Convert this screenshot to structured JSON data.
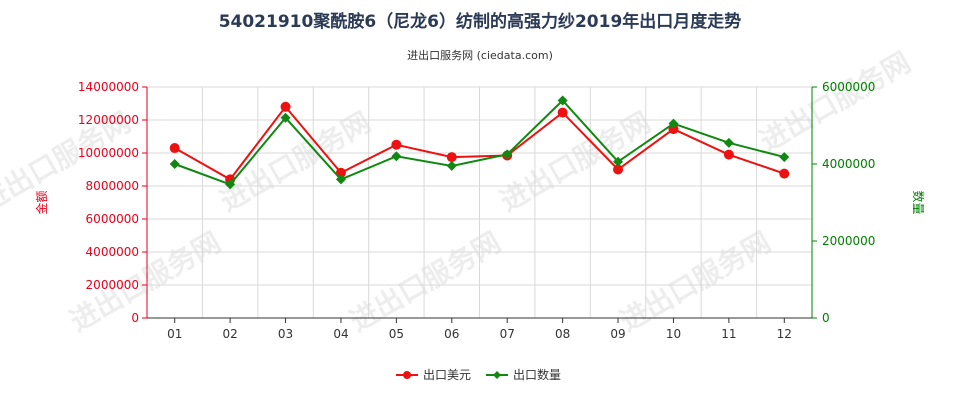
{
  "page": {
    "title": "54021910聚酰胺6（尼龙6）纺制的高强力纱2019年出口月度走势",
    "subtitle": "进出口服务网 (ciedata.com)",
    "watermark": "进出口服务网"
  },
  "chart_data": {
    "type": "line",
    "categories": [
      "01",
      "02",
      "03",
      "04",
      "05",
      "06",
      "07",
      "08",
      "09",
      "10",
      "11",
      "12"
    ],
    "y_left": {
      "label": "金额",
      "ylim": [
        0,
        14000000
      ],
      "ticks": [
        0,
        2000000,
        4000000,
        6000000,
        8000000,
        10000000,
        12000000,
        14000000
      ],
      "tick_labels": [
        "0",
        "2000000",
        "4000000",
        "6000000",
        "8000000",
        "10000000",
        "12000000",
        "14000000"
      ],
      "color": "#e8001c"
    },
    "y_right": {
      "label": "数量",
      "ylim": [
        0,
        6000000
      ],
      "ticks": [
        0,
        2000000,
        4000000,
        6000000
      ],
      "tick_labels": [
        "0",
        "2000000",
        "4000000",
        "6000000"
      ],
      "color": "#008000"
    },
    "series": [
      {
        "name": "出口美元",
        "axis": "left",
        "color": "#ee1111",
        "marker": "circle",
        "values": [
          10300000,
          8400000,
          12800000,
          8800000,
          10500000,
          9750000,
          9850000,
          12450000,
          9000000,
          11450000,
          9900000,
          8750000
        ]
      },
      {
        "name": "出口数量",
        "axis": "right",
        "color": "#118811",
        "marker": "diamond",
        "values": [
          4000000,
          3470000,
          5200000,
          3600000,
          4200000,
          3950000,
          4250000,
          5650000,
          4060000,
          5050000,
          4550000,
          4180000
        ]
      }
    ],
    "grid": true,
    "legend": "bottom-center"
  }
}
